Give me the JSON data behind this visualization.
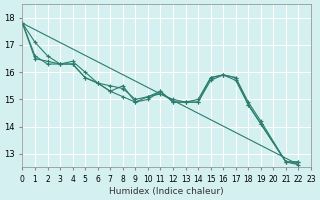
{
  "title": "",
  "xlabel": "Humidex (Indice chaleur)",
  "ylabel": "",
  "bg_color": "#d4f0f0",
  "grid_color": "#ffffff",
  "line_color": "#2a7d6e",
  "xlim": [
    0,
    23
  ],
  "ylim": [
    12.5,
    18.5
  ],
  "yticks": [
    13,
    14,
    15,
    16,
    17,
    18
  ],
  "xtick_labels": [
    "0",
    "1",
    "2",
    "3",
    "4",
    "5",
    "6",
    "7",
    "8",
    "9",
    "10",
    "11",
    "12",
    "13",
    "14",
    "15",
    "16",
    "17",
    "18",
    "19",
    "20",
    "21",
    "22",
    "23"
  ],
  "series": [
    [
      17.8,
      17.1,
      16.6,
      16.3,
      16.3,
      15.8,
      15.6,
      15.3,
      15.5,
      14.9,
      15.1,
      15.3,
      14.9,
      14.9,
      14.9,
      15.8,
      15.9,
      15.8,
      14.8,
      14.1,
      12.7,
      12.7
    ],
    [
      17.8,
      16.6,
      16.3,
      16.3,
      16.3,
      15.8,
      15.6,
      15.3,
      15.1,
      14.9,
      15.0,
      15.3,
      14.9,
      14.9,
      14.9,
      15.7,
      15.9,
      15.8,
      14.9,
      14.2,
      12.7,
      12.7
    ],
    [
      17.8,
      16.5,
      16.4,
      16.3,
      16.4,
      16.0,
      15.6,
      15.5,
      15.4,
      15.0,
      15.1,
      15.2,
      15.0,
      14.9,
      15.0,
      15.8,
      15.9,
      15.7,
      14.8,
      14.1,
      12.7,
      12.6
    ]
  ],
  "series_x": [
    0,
    1,
    2,
    3,
    4,
    5,
    6,
    7,
    8,
    9,
    10,
    11,
    12,
    13,
    14,
    15,
    16,
    17,
    18,
    19,
    21,
    22
  ]
}
